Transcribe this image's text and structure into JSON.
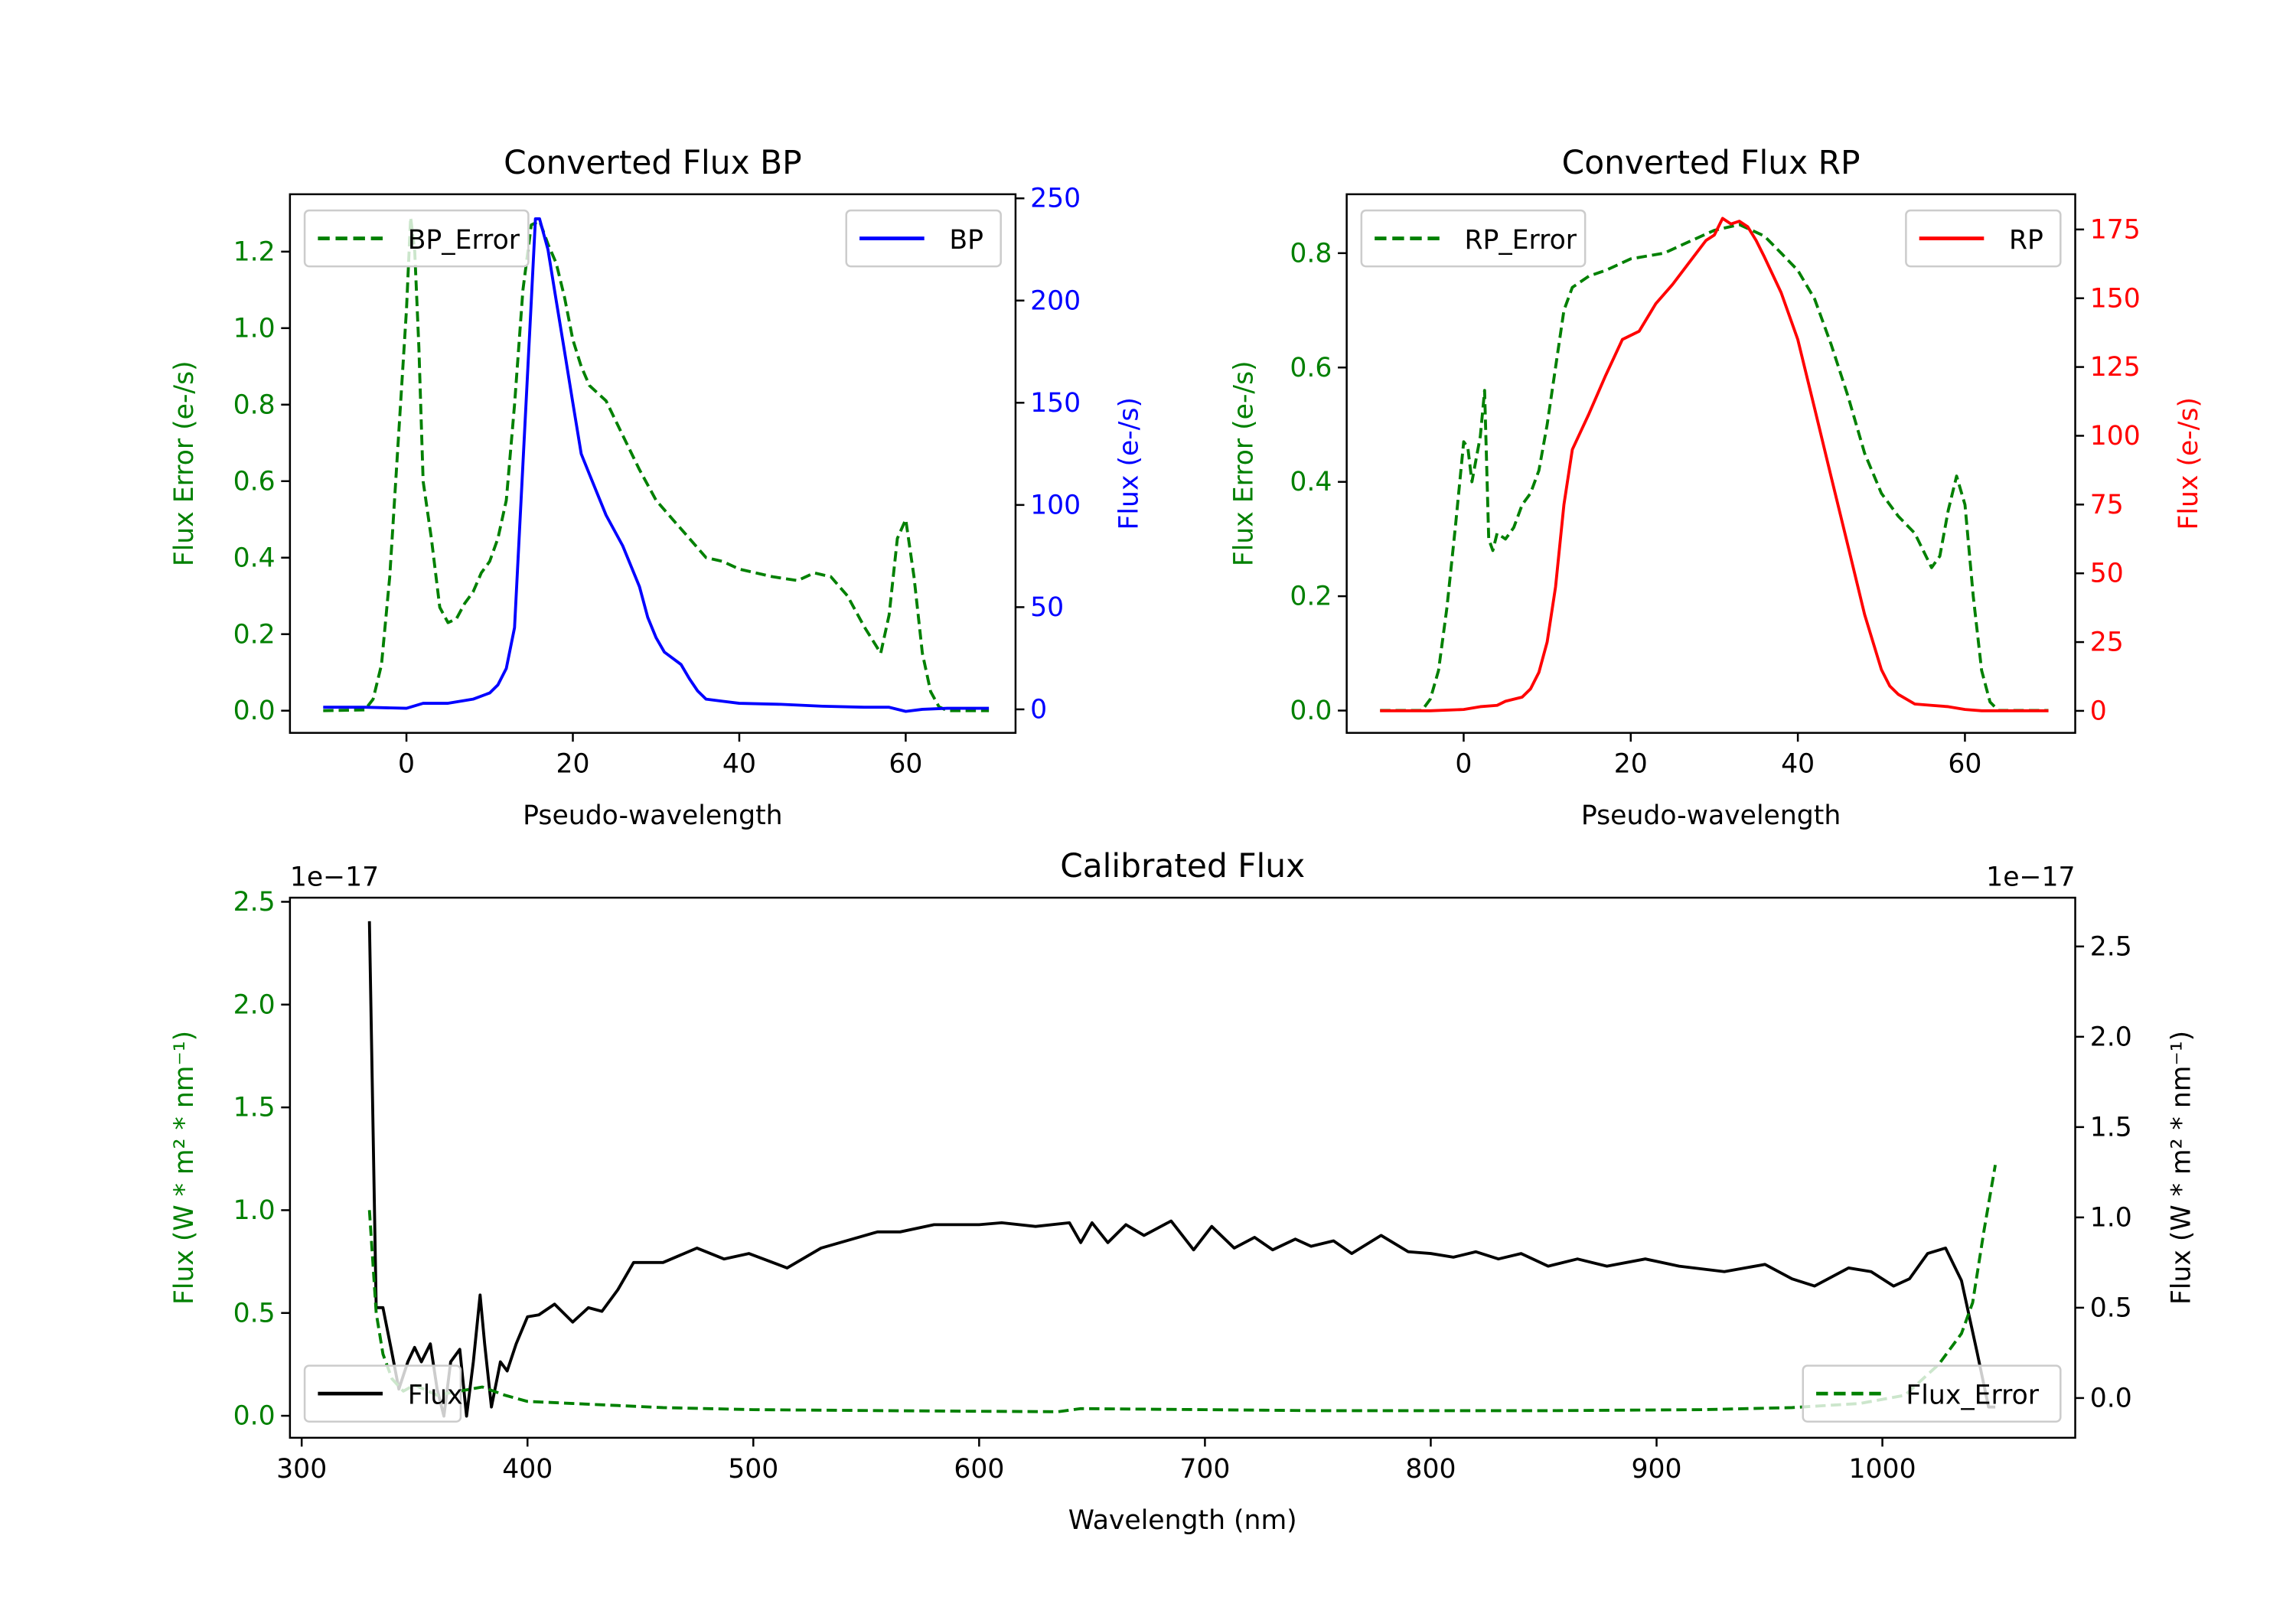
{
  "chart_data": [
    {
      "type": "line",
      "title": "Converted Flux BP",
      "xlabel": "Pseudo-wavelength",
      "ylabel_left": "Flux Error (e-/s)",
      "ylabel_right": "Flux (e-/s)",
      "left_color": "#008000",
      "right_color": "#0000ff",
      "xlim": [
        -14,
        73.2
      ],
      "ylim_left": [
        -0.058,
        1.35
      ],
      "ylim_right": [
        -11.5,
        252
      ],
      "xticks": [
        "0",
        "20",
        "40",
        "60"
      ],
      "yticks_left": [
        "0.0",
        "0.2",
        "0.4",
        "0.6",
        "0.8",
        "1.0",
        "1.2"
      ],
      "yticks_right": [
        "0",
        "50",
        "100",
        "150",
        "200",
        "250"
      ],
      "offset_left": "",
      "offset_right": "",
      "legend_left": {
        "placement": "upper-left",
        "series": 0
      },
      "legend_right": {
        "placement": "upper-right",
        "series": 1
      },
      "series": [
        {
          "name": "BP_Error",
          "axis": "left",
          "color": "#008000",
          "style": "dashed",
          "x": [
            -10,
            -5,
            -4,
            -3,
            -2,
            -1,
            0,
            0.5,
            1,
            1.5,
            2,
            3,
            4,
            5,
            6,
            7,
            8,
            9,
            10,
            11,
            12,
            13,
            14,
            15,
            16,
            17,
            18,
            19,
            20,
            21,
            22,
            24,
            26,
            28,
            30,
            32,
            34,
            36,
            38,
            40,
            44,
            47,
            49,
            51,
            53,
            55,
            57,
            58,
            59,
            60,
            61,
            62,
            63,
            64,
            65,
            70
          ],
          "y": [
            0,
            0.002,
            0.03,
            0.12,
            0.35,
            0.7,
            1.05,
            1.29,
            1.2,
            0.95,
            0.6,
            0.45,
            0.27,
            0.23,
            0.24,
            0.28,
            0.31,
            0.36,
            0.39,
            0.45,
            0.55,
            0.8,
            1.1,
            1.27,
            1.28,
            1.22,
            1.17,
            1.08,
            0.97,
            0.9,
            0.85,
            0.81,
            0.72,
            0.63,
            0.55,
            0.5,
            0.45,
            0.4,
            0.39,
            0.37,
            0.35,
            0.34,
            0.36,
            0.35,
            0.3,
            0.22,
            0.15,
            0.25,
            0.45,
            0.5,
            0.35,
            0.15,
            0.05,
            0.01,
            0,
            0
          ]
        },
        {
          "name": "BP",
          "axis": "right",
          "color": "#0000ff",
          "style": "solid",
          "x": [
            -10,
            -5,
            0,
            2,
            5,
            8,
            10,
            11,
            12,
            13,
            14,
            15,
            15.5,
            16,
            17,
            18,
            19,
            20,
            21,
            22,
            24,
            26,
            28,
            29,
            30,
            31,
            33,
            34,
            35,
            36,
            38,
            40,
            45,
            50,
            55,
            58,
            60,
            62,
            65,
            70
          ],
          "y": [
            1,
            1,
            0.5,
            3,
            3,
            5,
            8,
            12,
            20,
            40,
            120,
            200,
            240,
            240,
            225,
            200,
            175,
            150,
            125,
            115,
            95,
            80,
            60,
            45,
            35,
            28,
            22,
            15,
            9,
            5,
            4,
            3,
            2.5,
            1.5,
            1,
            1,
            -1,
            0,
            0.5,
            0.5
          ]
        }
      ]
    },
    {
      "type": "line",
      "title": "Converted Flux RP",
      "xlabel": "Pseudo-wavelength",
      "ylabel_left": "Flux Error (e-/s)",
      "ylabel_right": "Flux (e-/s)",
      "left_color": "#008000",
      "right_color": "#ff0000",
      "xlim": [
        -14,
        73.2
      ],
      "ylim_left": [
        -0.039,
        0.903
      ],
      "ylim_right": [
        -8,
        187.8
      ],
      "xticks": [
        "0",
        "20",
        "40",
        "60"
      ],
      "yticks_left": [
        "0.0",
        "0.2",
        "0.4",
        "0.6",
        "0.8"
      ],
      "yticks_right": [
        "0",
        "25",
        "50",
        "75",
        "100",
        "125",
        "150",
        "175"
      ],
      "offset_left": "",
      "offset_right": "",
      "legend_left": {
        "placement": "upper-left",
        "series": 0
      },
      "legend_right": {
        "placement": "upper-right",
        "series": 1
      },
      "series": [
        {
          "name": "RP_Error",
          "axis": "left",
          "color": "#008000",
          "style": "dashed",
          "x": [
            -10,
            -5,
            -4,
            -3,
            -2,
            -1,
            0,
            0.5,
            1,
            2,
            2.5,
            3,
            3.5,
            4,
            5,
            6,
            7,
            8,
            9,
            10,
            11,
            12,
            13,
            15,
            17,
            20,
            24,
            27,
            30,
            33,
            36,
            38,
            40,
            42,
            44,
            46,
            48,
            50,
            52,
            54,
            56,
            57,
            58,
            59,
            60,
            61,
            62,
            63,
            64,
            70
          ],
          "y": [
            0,
            0,
            0.02,
            0.07,
            0.18,
            0.32,
            0.47,
            0.46,
            0.4,
            0.48,
            0.56,
            0.3,
            0.28,
            0.31,
            0.3,
            0.32,
            0.36,
            0.38,
            0.42,
            0.5,
            0.6,
            0.7,
            0.74,
            0.76,
            0.77,
            0.79,
            0.8,
            0.82,
            0.84,
            0.85,
            0.83,
            0.8,
            0.77,
            0.72,
            0.64,
            0.55,
            0.45,
            0.38,
            0.34,
            0.31,
            0.25,
            0.27,
            0.35,
            0.41,
            0.36,
            0.2,
            0.07,
            0.015,
            0,
            0
          ]
        },
        {
          "name": "RP",
          "axis": "right",
          "color": "#ff0000",
          "style": "solid",
          "x": [
            -10,
            -4,
            0,
            2,
            4,
            5,
            7,
            8,
            9,
            10,
            11,
            12,
            13,
            15,
            17,
            19,
            21,
            23,
            25,
            27,
            29,
            30,
            31,
            32,
            33,
            34,
            35,
            36,
            38,
            40,
            42,
            44,
            46,
            48,
            49,
            50,
            51,
            52,
            54,
            56,
            58,
            60,
            62,
            70
          ],
          "y": [
            0,
            0,
            0.5,
            1.5,
            2,
            3.5,
            5,
            8,
            14,
            25,
            45,
            75,
            95,
            108,
            122,
            135,
            138,
            148,
            155,
            163,
            171,
            173,
            179,
            177,
            178,
            176,
            171,
            165,
            152,
            135,
            110,
            85,
            60,
            35,
            25,
            15,
            9,
            6,
            2.5,
            2,
            1.5,
            0.5,
            0,
            0
          ]
        }
      ]
    },
    {
      "type": "line",
      "title": "Calibrated Flux",
      "xlabel": "Wavelength (nm)",
      "ylabel_left": "Flux (W * m² * nm⁻¹)",
      "ylabel_right": "Flux (W * m² * nm⁻¹)",
      "left_color": "#008000",
      "right_color": "#000000",
      "xlim": [
        294.8,
        1085.4
      ],
      "ylim_left": [
        -0.107,
        2.52
      ],
      "ylim_right": [
        -0.22,
        2.77
      ],
      "xticks": [
        "300",
        "400",
        "500",
        "600",
        "700",
        "800",
        "900",
        "1000"
      ],
      "yticks_left": [
        "0.0",
        "0.5",
        "1.0",
        "1.5",
        "2.0",
        "2.5"
      ],
      "yticks_right": [
        "0.0",
        "0.5",
        "1.0",
        "1.5",
        "2.0",
        "2.5"
      ],
      "offset_left": "1e−17",
      "offset_right": "1e−17",
      "legend_left": {
        "placement": "lower-left",
        "series": 0
      },
      "legend_right": {
        "placement": "lower-right",
        "series": 1
      },
      "series": [
        {
          "name": "Flux",
          "axis": "right",
          "color": "#000000",
          "style": "solid",
          "x": [
            330,
            333,
            336,
            340,
            343,
            347,
            350,
            353,
            357,
            360,
            363,
            366,
            370,
            373,
            376,
            379,
            381,
            384,
            388,
            391,
            395,
            400,
            405,
            412,
            420,
            427,
            433,
            440,
            447,
            460,
            475,
            487,
            498,
            515,
            530,
            555,
            565,
            580,
            600,
            610,
            625,
            640,
            645,
            650,
            657,
            665,
            673,
            685,
            695,
            703,
            713,
            722,
            730,
            740,
            747,
            757,
            765,
            778,
            790,
            800,
            810,
            820,
            830,
            840,
            852,
            865,
            878,
            895,
            910,
            930,
            948,
            960,
            970,
            985,
            995,
            1005,
            1012,
            1020,
            1028,
            1035,
            1042,
            1047,
            1050
          ],
          "y": [
            2.64,
            0.5,
            0.5,
            0.25,
            0.05,
            0.2,
            0.28,
            0.2,
            0.3,
            0.05,
            -0.1,
            0.2,
            0.27,
            -0.1,
            0.2,
            0.57,
            0.3,
            -0.05,
            0.2,
            0.15,
            0.3,
            0.45,
            0.46,
            0.52,
            0.42,
            0.5,
            0.48,
            0.6,
            0.75,
            0.75,
            0.83,
            0.77,
            0.8,
            0.72,
            0.83,
            0.92,
            0.92,
            0.96,
            0.96,
            0.97,
            0.95,
            0.97,
            0.86,
            0.97,
            0.86,
            0.96,
            0.9,
            0.98,
            0.82,
            0.95,
            0.83,
            0.89,
            0.82,
            0.88,
            0.84,
            0.87,
            0.8,
            0.9,
            0.81,
            0.8,
            0.78,
            0.81,
            0.77,
            0.8,
            0.73,
            0.77,
            0.73,
            0.77,
            0.73,
            0.7,
            0.74,
            0.66,
            0.62,
            0.72,
            0.7,
            0.62,
            0.66,
            0.8,
            0.83,
            0.65,
            0.25,
            -0.05,
            -0.05
          ]
        },
        {
          "name": "Flux_Error",
          "axis": "left",
          "color": "#008000",
          "style": "dashed",
          "x": [
            330,
            333,
            336,
            340,
            345,
            350,
            360,
            370,
            380,
            390,
            400,
            420,
            440,
            460,
            500,
            560,
            600,
            635,
            645,
            700,
            750,
            850,
            920,
            960,
            990,
            1010,
            1025,
            1035,
            1040,
            1045,
            1050
          ],
          "y": [
            1.0,
            0.5,
            0.3,
            0.18,
            0.12,
            0.15,
            0.1,
            0.12,
            0.14,
            0.1,
            0.07,
            0.06,
            0.05,
            0.04,
            0.03,
            0.025,
            0.022,
            0.02,
            0.035,
            0.03,
            0.025,
            0.025,
            0.03,
            0.04,
            0.06,
            0.1,
            0.25,
            0.4,
            0.55,
            0.9,
            1.22
          ]
        }
      ]
    }
  ]
}
